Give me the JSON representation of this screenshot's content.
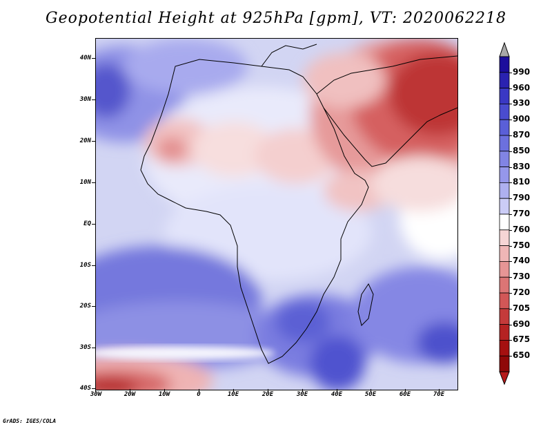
{
  "title": "Geopotential Height at 925hPa [gpm], VT: 2020062218",
  "footer": "GrADS: IGES/COLA",
  "latitude_labels": [
    "40N",
    "30N",
    "20N",
    "10N",
    "EQ",
    "10S",
    "20S",
    "30S",
    "40S"
  ],
  "longitude_labels": [
    "30W",
    "20W",
    "10W",
    "0",
    "10E",
    "20E",
    "30E",
    "40E",
    "50E",
    "60E",
    "70E"
  ],
  "colorbar": {
    "labels": [
      "990",
      "960",
      "930",
      "900",
      "870",
      "850",
      "830",
      "810",
      "790",
      "770",
      "760",
      "750",
      "740",
      "730",
      "720",
      "705",
      "690",
      "675",
      "650"
    ],
    "colors": [
      "#1c0e9c",
      "#2a22b0",
      "#3a38c4",
      "#4a4ccf",
      "#5a5fd8",
      "#6c70de",
      "#8184e4",
      "#9597ea",
      "#aeb0f0",
      "#cbccf6",
      "#ffffff",
      "#f6d5d5",
      "#efb6b6",
      "#e69595",
      "#dc7575",
      "#d25757",
      "#c43a3a",
      "#b52222",
      "#a51010",
      "#8f0808"
    ],
    "over_color": "#a8a8a8",
    "under_color": "#b51a1a"
  }
}
